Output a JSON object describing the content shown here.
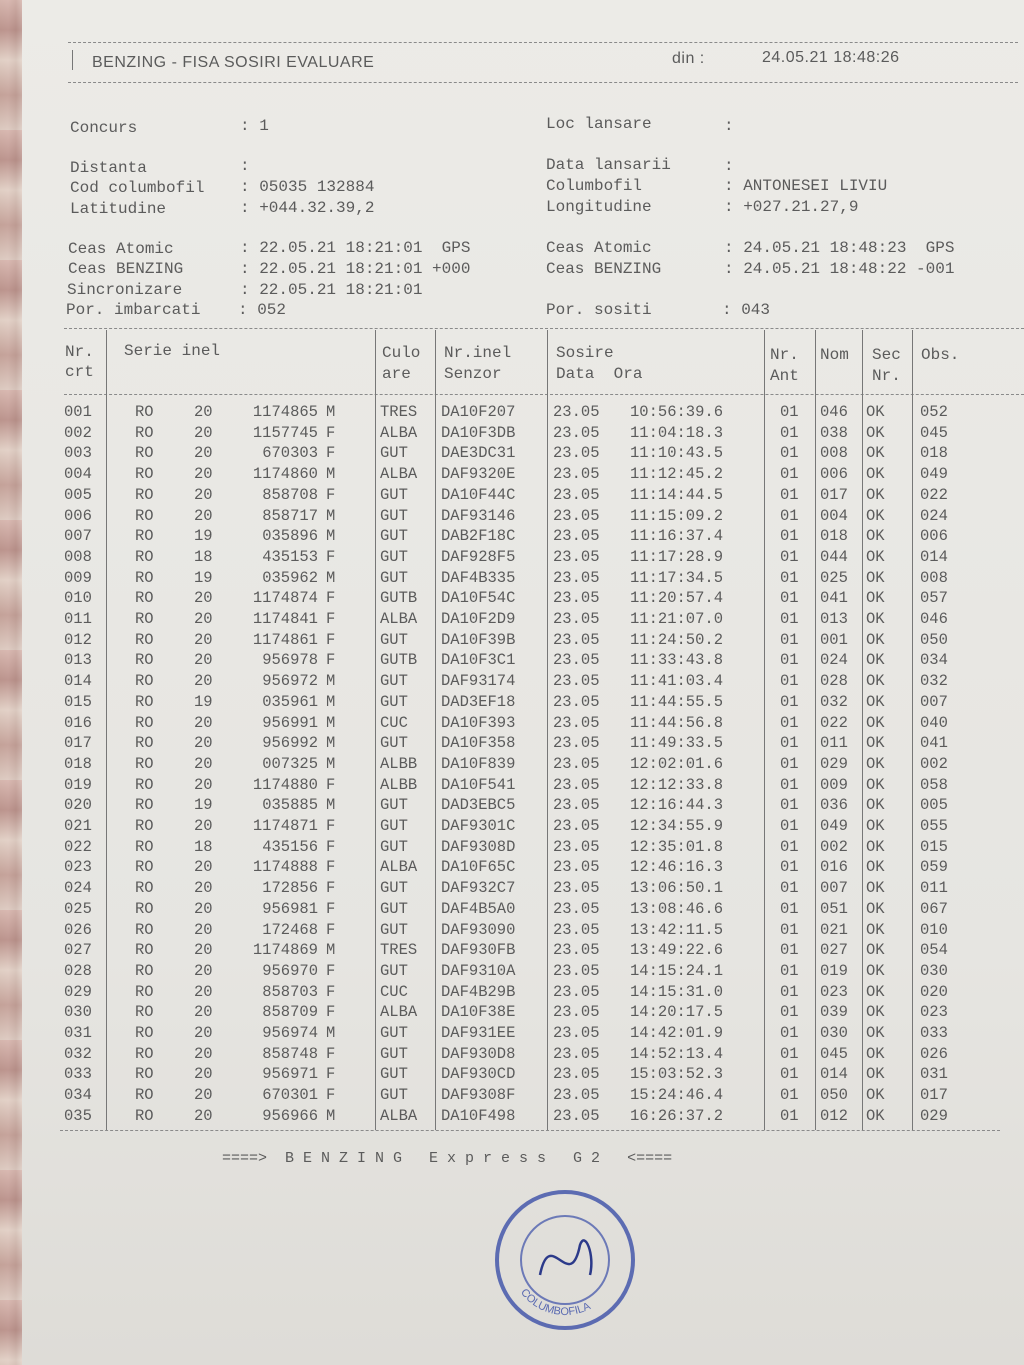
{
  "header": {
    "title": "BENZING - FISA SOSIRI EVALUARE",
    "din_label": "din :",
    "din_value": "24.05.21 18:48:26"
  },
  "info": {
    "concurs": {
      "label": "Concurs",
      "value": ": 1"
    },
    "loc_lansare": {
      "label": "Loc lansare",
      "value": ":"
    },
    "distanta": {
      "label": "Distanta",
      "value": ":"
    },
    "data_lansarii": {
      "label": "Data lansarii",
      "value": ":"
    },
    "cod_columbofil": {
      "label": "Cod columbofil",
      "value": ": 05035 132884"
    },
    "columbofil": {
      "label": "Columbofil",
      "value": ": ANTONESEI LIVIU"
    },
    "latitudine": {
      "label": "Latitudine",
      "value": ": +044.32.39,2"
    },
    "longitudine": {
      "label": "Longitudine",
      "value": ": +027.21.27,9"
    },
    "ceas_atomic_1": {
      "label": "Ceas Atomic",
      "value": ": 22.05.21 18:21:01  GPS"
    },
    "ceas_atomic_2": {
      "label": "Ceas Atomic",
      "value": ": 24.05.21 18:48:23  GPS"
    },
    "ceas_benzing_1": {
      "label": "Ceas BENZING",
      "value": ": 22.05.21 18:21:01 +000"
    },
    "ceas_benzing_2": {
      "label": "Ceas BENZING",
      "value": ": 24.05.21 18:48:22 -001"
    },
    "sincronizare": {
      "label": "Sincronizare",
      "value": ": 22.05.21 18:21:01"
    },
    "por_imbarcati": {
      "label": "Por. imbarcati",
      "value": ": 052"
    },
    "por_sositi": {
      "label": "Por. sositi",
      "value": ": 043"
    }
  },
  "table": {
    "headers": {
      "nr1": "Nr.",
      "nr2": "crt",
      "serie": "Serie inel",
      "culo1": "Culo",
      "culo2": "are",
      "nrinel1": "Nr.inel",
      "nrinel2": "Senzor",
      "sosire1": "Sosire",
      "sosire2": "Data  Ora",
      "ant1": "Nr.",
      "ant2": "Ant",
      "nom": "Nom",
      "sec1": "Sec",
      "sec2": "Nr.",
      "obs": "Obs."
    },
    "rows": [
      [
        "001",
        "RO",
        "20",
        "1174865",
        "M",
        "TRES",
        "DA10F207",
        "23.05",
        "10:56:39.6",
        "01",
        "046",
        "OK",
        "052"
      ],
      [
        "002",
        "RO",
        "20",
        "1157745",
        "F",
        "ALBA",
        "DA10F3DB",
        "23.05",
        "11:04:18.3",
        "01",
        "038",
        "OK",
        "045"
      ],
      [
        "003",
        "RO",
        "20",
        "670303",
        "F",
        "GUT",
        "DAE3DC31",
        "23.05",
        "11:10:43.5",
        "01",
        "008",
        "OK",
        "018"
      ],
      [
        "004",
        "RO",
        "20",
        "1174860",
        "M",
        "ALBA",
        "DAF9320E",
        "23.05",
        "11:12:45.2",
        "01",
        "006",
        "OK",
        "049"
      ],
      [
        "005",
        "RO",
        "20",
        "858708",
        "F",
        "GUT",
        "DA10F44C",
        "23.05",
        "11:14:44.5",
        "01",
        "017",
        "OK",
        "022"
      ],
      [
        "006",
        "RO",
        "20",
        "858717",
        "M",
        "GUT",
        "DAF93146",
        "23.05",
        "11:15:09.2",
        "01",
        "004",
        "OK",
        "024"
      ],
      [
        "007",
        "RO",
        "19",
        "035896",
        "M",
        "GUT",
        "DAB2F18C",
        "23.05",
        "11:16:37.4",
        "01",
        "018",
        "OK",
        "006"
      ],
      [
        "008",
        "RO",
        "18",
        "435153",
        "F",
        "GUT",
        "DAF928F5",
        "23.05",
        "11:17:28.9",
        "01",
        "044",
        "OK",
        "014"
      ],
      [
        "009",
        "RO",
        "19",
        "035962",
        "M",
        "GUT",
        "DAF4B335",
        "23.05",
        "11:17:34.5",
        "01",
        "025",
        "OK",
        "008"
      ],
      [
        "010",
        "RO",
        "20",
        "1174874",
        "F",
        "GUTB",
        "DA10F54C",
        "23.05",
        "11:20:57.4",
        "01",
        "041",
        "OK",
        "057"
      ],
      [
        "011",
        "RO",
        "20",
        "1174841",
        "F",
        "ALBA",
        "DA10F2D9",
        "23.05",
        "11:21:07.0",
        "01",
        "013",
        "OK",
        "046"
      ],
      [
        "012",
        "RO",
        "20",
        "1174861",
        "F",
        "GUT",
        "DA10F39B",
        "23.05",
        "11:24:50.2",
        "01",
        "001",
        "OK",
        "050"
      ],
      [
        "013",
        "RO",
        "20",
        "956978",
        "F",
        "GUTB",
        "DA10F3C1",
        "23.05",
        "11:33:43.8",
        "01",
        "024",
        "OK",
        "034"
      ],
      [
        "014",
        "RO",
        "20",
        "956972",
        "M",
        "GUT",
        "DAF93174",
        "23.05",
        "11:41:03.4",
        "01",
        "028",
        "OK",
        "032"
      ],
      [
        "015",
        "RO",
        "19",
        "035961",
        "M",
        "GUT",
        "DAD3EF18",
        "23.05",
        "11:44:55.5",
        "01",
        "032",
        "OK",
        "007"
      ],
      [
        "016",
        "RO",
        "20",
        "956991",
        "M",
        "CUC",
        "DA10F393",
        "23.05",
        "11:44:56.8",
        "01",
        "022",
        "OK",
        "040"
      ],
      [
        "017",
        "RO",
        "20",
        "956992",
        "M",
        "GUT",
        "DA10F358",
        "23.05",
        "11:49:33.5",
        "01",
        "011",
        "OK",
        "041"
      ],
      [
        "018",
        "RO",
        "20",
        "007325",
        "M",
        "ALBB",
        "DA10F839",
        "23.05",
        "12:02:01.6",
        "01",
        "029",
        "OK",
        "002"
      ],
      [
        "019",
        "RO",
        "20",
        "1174880",
        "F",
        "ALBB",
        "DA10F541",
        "23.05",
        "12:12:33.8",
        "01",
        "009",
        "OK",
        "058"
      ],
      [
        "020",
        "RO",
        "19",
        "035885",
        "M",
        "GUT",
        "DAD3EBC5",
        "23.05",
        "12:16:44.3",
        "01",
        "036",
        "OK",
        "005"
      ],
      [
        "021",
        "RO",
        "20",
        "1174871",
        "F",
        "GUT",
        "DAF9301C",
        "23.05",
        "12:34:55.9",
        "01",
        "049",
        "OK",
        "055"
      ],
      [
        "022",
        "RO",
        "18",
        "435156",
        "F",
        "GUT",
        "DAF9308D",
        "23.05",
        "12:35:01.8",
        "01",
        "002",
        "OK",
        "015"
      ],
      [
        "023",
        "RO",
        "20",
        "1174888",
        "F",
        "ALBA",
        "DA10F65C",
        "23.05",
        "12:46:16.3",
        "01",
        "016",
        "OK",
        "059"
      ],
      [
        "024",
        "RO",
        "20",
        "172856",
        "F",
        "GUT",
        "DAF932C7",
        "23.05",
        "13:06:50.1",
        "01",
        "007",
        "OK",
        "011"
      ],
      [
        "025",
        "RO",
        "20",
        "956981",
        "F",
        "GUT",
        "DAF4B5A0",
        "23.05",
        "13:08:46.6",
        "01",
        "051",
        "OK",
        "067"
      ],
      [
        "026",
        "RO",
        "20",
        "172468",
        "F",
        "GUT",
        "DAF93090",
        "23.05",
        "13:42:11.5",
        "01",
        "021",
        "OK",
        "010"
      ],
      [
        "027",
        "RO",
        "20",
        "1174869",
        "M",
        "TRES",
        "DAF930FB",
        "23.05",
        "13:49:22.6",
        "01",
        "027",
        "OK",
        "054"
      ],
      [
        "028",
        "RO",
        "20",
        "956970",
        "F",
        "GUT",
        "DAF9310A",
        "23.05",
        "14:15:24.1",
        "01",
        "019",
        "OK",
        "030"
      ],
      [
        "029",
        "RO",
        "20",
        "858703",
        "F",
        "CUC",
        "DAF4B29B",
        "23.05",
        "14:15:31.0",
        "01",
        "023",
        "OK",
        "020"
      ],
      [
        "030",
        "RO",
        "20",
        "858709",
        "F",
        "ALBA",
        "DA10F38E",
        "23.05",
        "14:20:17.5",
        "01",
        "039",
        "OK",
        "023"
      ],
      [
        "031",
        "RO",
        "20",
        "956974",
        "M",
        "GUT",
        "DAF931EE",
        "23.05",
        "14:42:01.9",
        "01",
        "030",
        "OK",
        "033"
      ],
      [
        "032",
        "RO",
        "20",
        "858748",
        "F",
        "GUT",
        "DAF930D8",
        "23.05",
        "14:52:13.4",
        "01",
        "045",
        "OK",
        "026"
      ],
      [
        "033",
        "RO",
        "20",
        "956971",
        "F",
        "GUT",
        "DAF930CD",
        "23.05",
        "15:03:52.3",
        "01",
        "014",
        "OK",
        "031"
      ],
      [
        "034",
        "RO",
        "20",
        "670301",
        "F",
        "GUT",
        "DAF9308F",
        "23.05",
        "15:24:46.4",
        "01",
        "050",
        "OK",
        "017"
      ],
      [
        "035",
        "RO",
        "20",
        "956966",
        "M",
        "ALBA",
        "DA10F498",
        "23.05",
        "16:26:37.2",
        "01",
        "012",
        "OK",
        "029"
      ]
    ]
  },
  "footer": "====>  B E N Z I N G   E x p r e s s   G 2   <====",
  "seal": {
    "text": "COLUMBOFILA",
    "color": "#3b4fa8"
  }
}
